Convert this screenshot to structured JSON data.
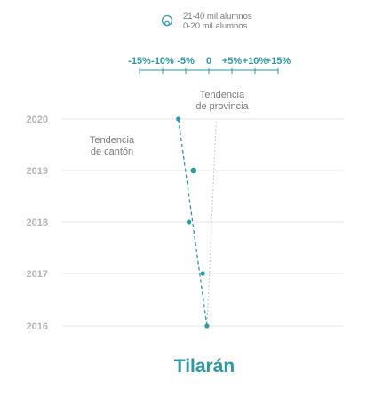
{
  "chart_data": {
    "type": "scatter",
    "title": "Tilarán",
    "x_ticks": [
      "-15%",
      "-10%",
      "-5%",
      "0",
      "+5%",
      "+10%",
      "+15%"
    ],
    "xlim": [
      -15,
      15
    ],
    "y_ticks": [
      "2020",
      "2019",
      "2018",
      "2017",
      "2016"
    ],
    "legend": {
      "entries": [
        "21-40 mil alumnos",
        "0-20 mil alumnos"
      ]
    },
    "points": [
      {
        "year": "2020",
        "x": -6.6,
        "size_class": "0-20 mil alumnos"
      },
      {
        "year": "2019",
        "x": -3.3,
        "size_class": "21-40 mil alumnos"
      },
      {
        "year": "2018",
        "x": -4.3,
        "size_class": "0-20 mil alumnos"
      },
      {
        "year": "2017",
        "x": -1.3,
        "size_class": "0-20 mil alumnos"
      },
      {
        "year": "2016",
        "x": -0.4,
        "size_class": "0-20 mil alumnos"
      }
    ],
    "trend_canton": {
      "label": [
        "Tendencia",
        "de cantón"
      ],
      "from": {
        "year": "2016",
        "x": -0.4
      },
      "to": {
        "year": "2020",
        "x": -6.6
      }
    },
    "trend_provincia": {
      "label": [
        "Tendencia",
        "de provincia"
      ],
      "from": {
        "year": "2016",
        "x": -0.4
      },
      "to": {
        "year": "2020",
        "x": 1.6
      }
    },
    "grid": true,
    "colors": {
      "accent": "#2b9aa4",
      "year_label": "#b5b5b5",
      "annotation": "#7a7a7a",
      "grid": "#e6e6e6",
      "provincia_line": "#c8c8c8"
    }
  }
}
